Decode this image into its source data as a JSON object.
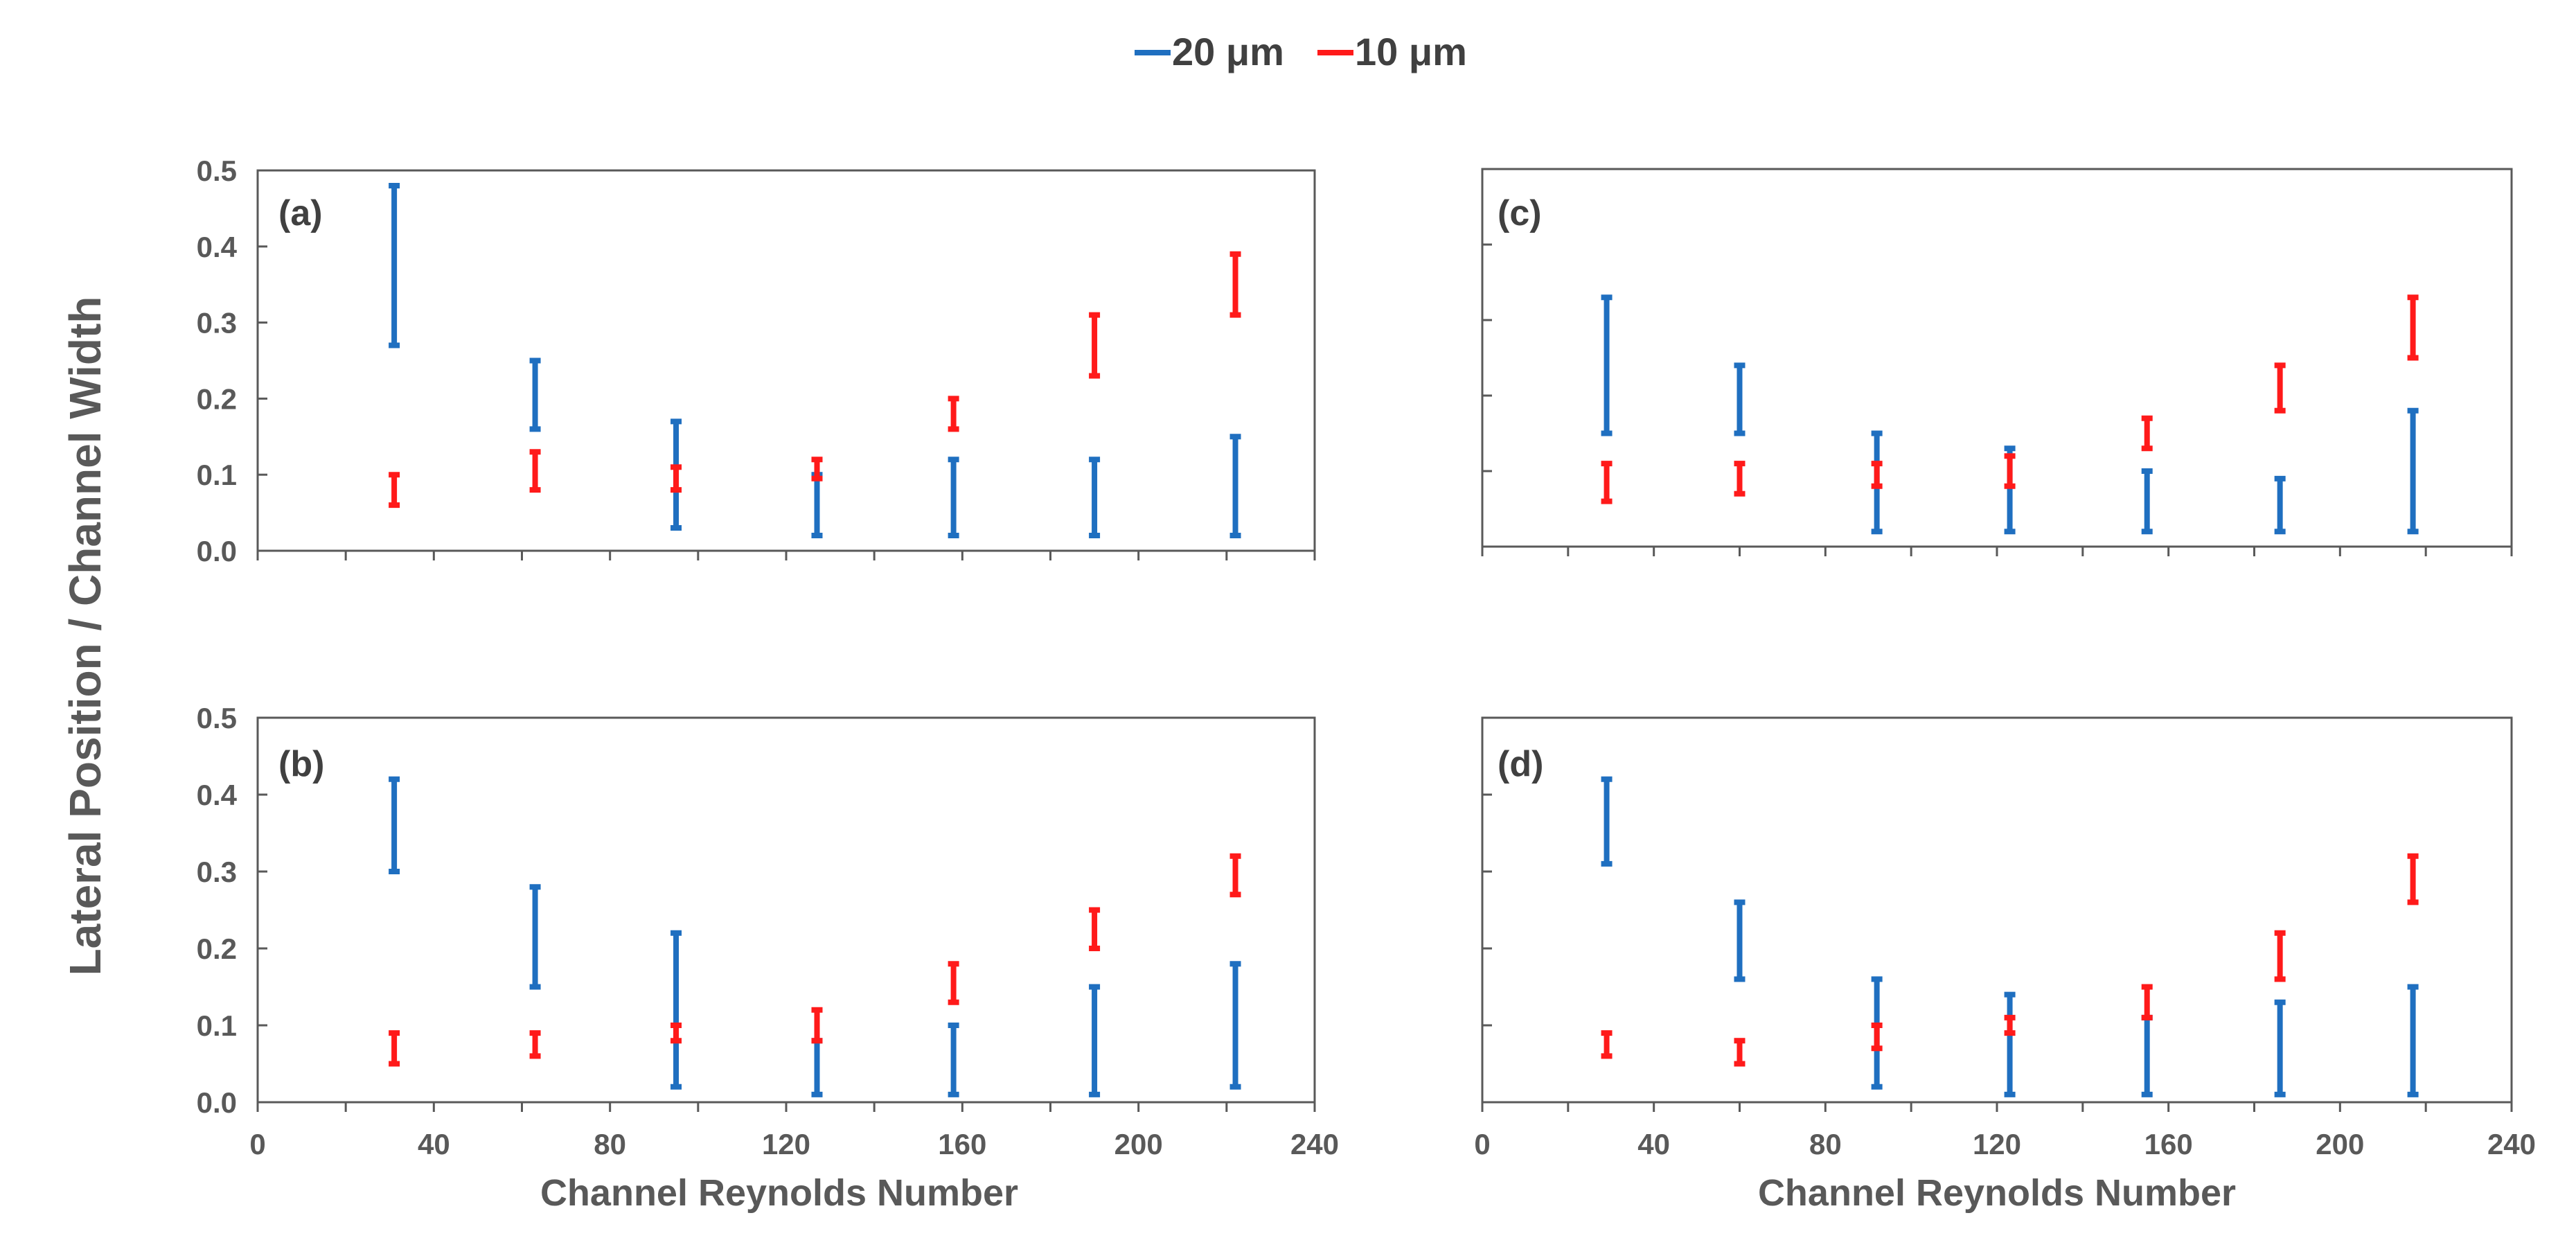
{
  "chart_data": {
    "type": "errorbar-range",
    "ylabel": "Lateral Position / Channel Width",
    "xlabel": "Channel Reynolds Number",
    "xlim": [
      0,
      240
    ],
    "ylim": [
      0,
      0.5
    ],
    "x_ticks": [
      "0",
      "40",
      "80",
      "120",
      "160",
      "200",
      "240"
    ],
    "y_ticks": [
      "0.0",
      "0.1",
      "0.2",
      "0.3",
      "0.4",
      "0.5"
    ],
    "colors": {
      "20um": "#1f6fc0",
      "10um": "#ff1a1a"
    },
    "legend": [
      {
        "name": "20 μm",
        "color": "#1f6fc0"
      },
      {
        "name": "10 μm",
        "color": "#ff1a1a"
      }
    ],
    "panels": [
      {
        "label": "(a)",
        "series": [
          {
            "name": "20 μm",
            "color": "#1f6fc0",
            "x": [
              31,
              63,
              95,
              127,
              158,
              190,
              222
            ],
            "low": [
              0.27,
              0.16,
              0.03,
              0.02,
              0.02,
              0.02,
              0.02
            ],
            "high": [
              0.48,
              0.25,
              0.17,
              0.1,
              0.12,
              0.12,
              0.15
            ]
          },
          {
            "name": "10 μm",
            "color": "#ff1a1a",
            "x": [
              31,
              63,
              95,
              127,
              158,
              190,
              222
            ],
            "low": [
              0.06,
              0.08,
              0.08,
              0.095,
              0.16,
              0.23,
              0.31
            ],
            "high": [
              0.1,
              0.13,
              0.11,
              0.12,
              0.2,
              0.31,
              0.39
            ]
          }
        ]
      },
      {
        "label": "(b)",
        "series": [
          {
            "name": "20 μm",
            "color": "#1f6fc0",
            "x": [
              31,
              63,
              95,
              127,
              158,
              190,
              222
            ],
            "low": [
              0.3,
              0.15,
              0.02,
              0.01,
              0.01,
              0.01,
              0.02
            ],
            "high": [
              0.42,
              0.28,
              0.22,
              0.08,
              0.1,
              0.15,
              0.18
            ]
          },
          {
            "name": "10 μm",
            "color": "#ff1a1a",
            "x": [
              31,
              63,
              95,
              127,
              158,
              190,
              222
            ],
            "low": [
              0.05,
              0.06,
              0.08,
              0.08,
              0.13,
              0.2,
              0.27
            ],
            "high": [
              0.09,
              0.09,
              0.1,
              0.12,
              0.18,
              0.25,
              0.32
            ]
          }
        ]
      },
      {
        "label": "(c)",
        "series": [
          {
            "name": "20 μm",
            "color": "#1f6fc0",
            "x": [
              29,
              60,
              92,
              123,
              155,
              186,
              217
            ],
            "low": [
              0.15,
              0.15,
              0.02,
              0.02,
              0.02,
              0.02,
              0.02
            ],
            "high": [
              0.33,
              0.24,
              0.15,
              0.13,
              0.1,
              0.09,
              0.18
            ]
          },
          {
            "name": "10 μm",
            "color": "#ff1a1a",
            "x": [
              29,
              60,
              92,
              123,
              155,
              186,
              217
            ],
            "low": [
              0.06,
              0.07,
              0.08,
              0.08,
              0.13,
              0.18,
              0.25
            ],
            "high": [
              0.11,
              0.11,
              0.11,
              0.12,
              0.17,
              0.24,
              0.33
            ]
          }
        ]
      },
      {
        "label": "(d)",
        "series": [
          {
            "name": "20 μm",
            "color": "#1f6fc0",
            "x": [
              29,
              60,
              92,
              123,
              155,
              186,
              217
            ],
            "low": [
              0.31,
              0.16,
              0.02,
              0.01,
              0.01,
              0.01,
              0.01
            ],
            "high": [
              0.42,
              0.26,
              0.16,
              0.14,
              0.11,
              0.13,
              0.15
            ]
          },
          {
            "name": "10 μm",
            "color": "#ff1a1a",
            "x": [
              29,
              60,
              92,
              123,
              155,
              186,
              217
            ],
            "low": [
              0.06,
              0.05,
              0.07,
              0.09,
              0.11,
              0.16,
              0.26
            ],
            "high": [
              0.09,
              0.08,
              0.1,
              0.11,
              0.15,
              0.22,
              0.32
            ]
          }
        ]
      }
    ]
  }
}
